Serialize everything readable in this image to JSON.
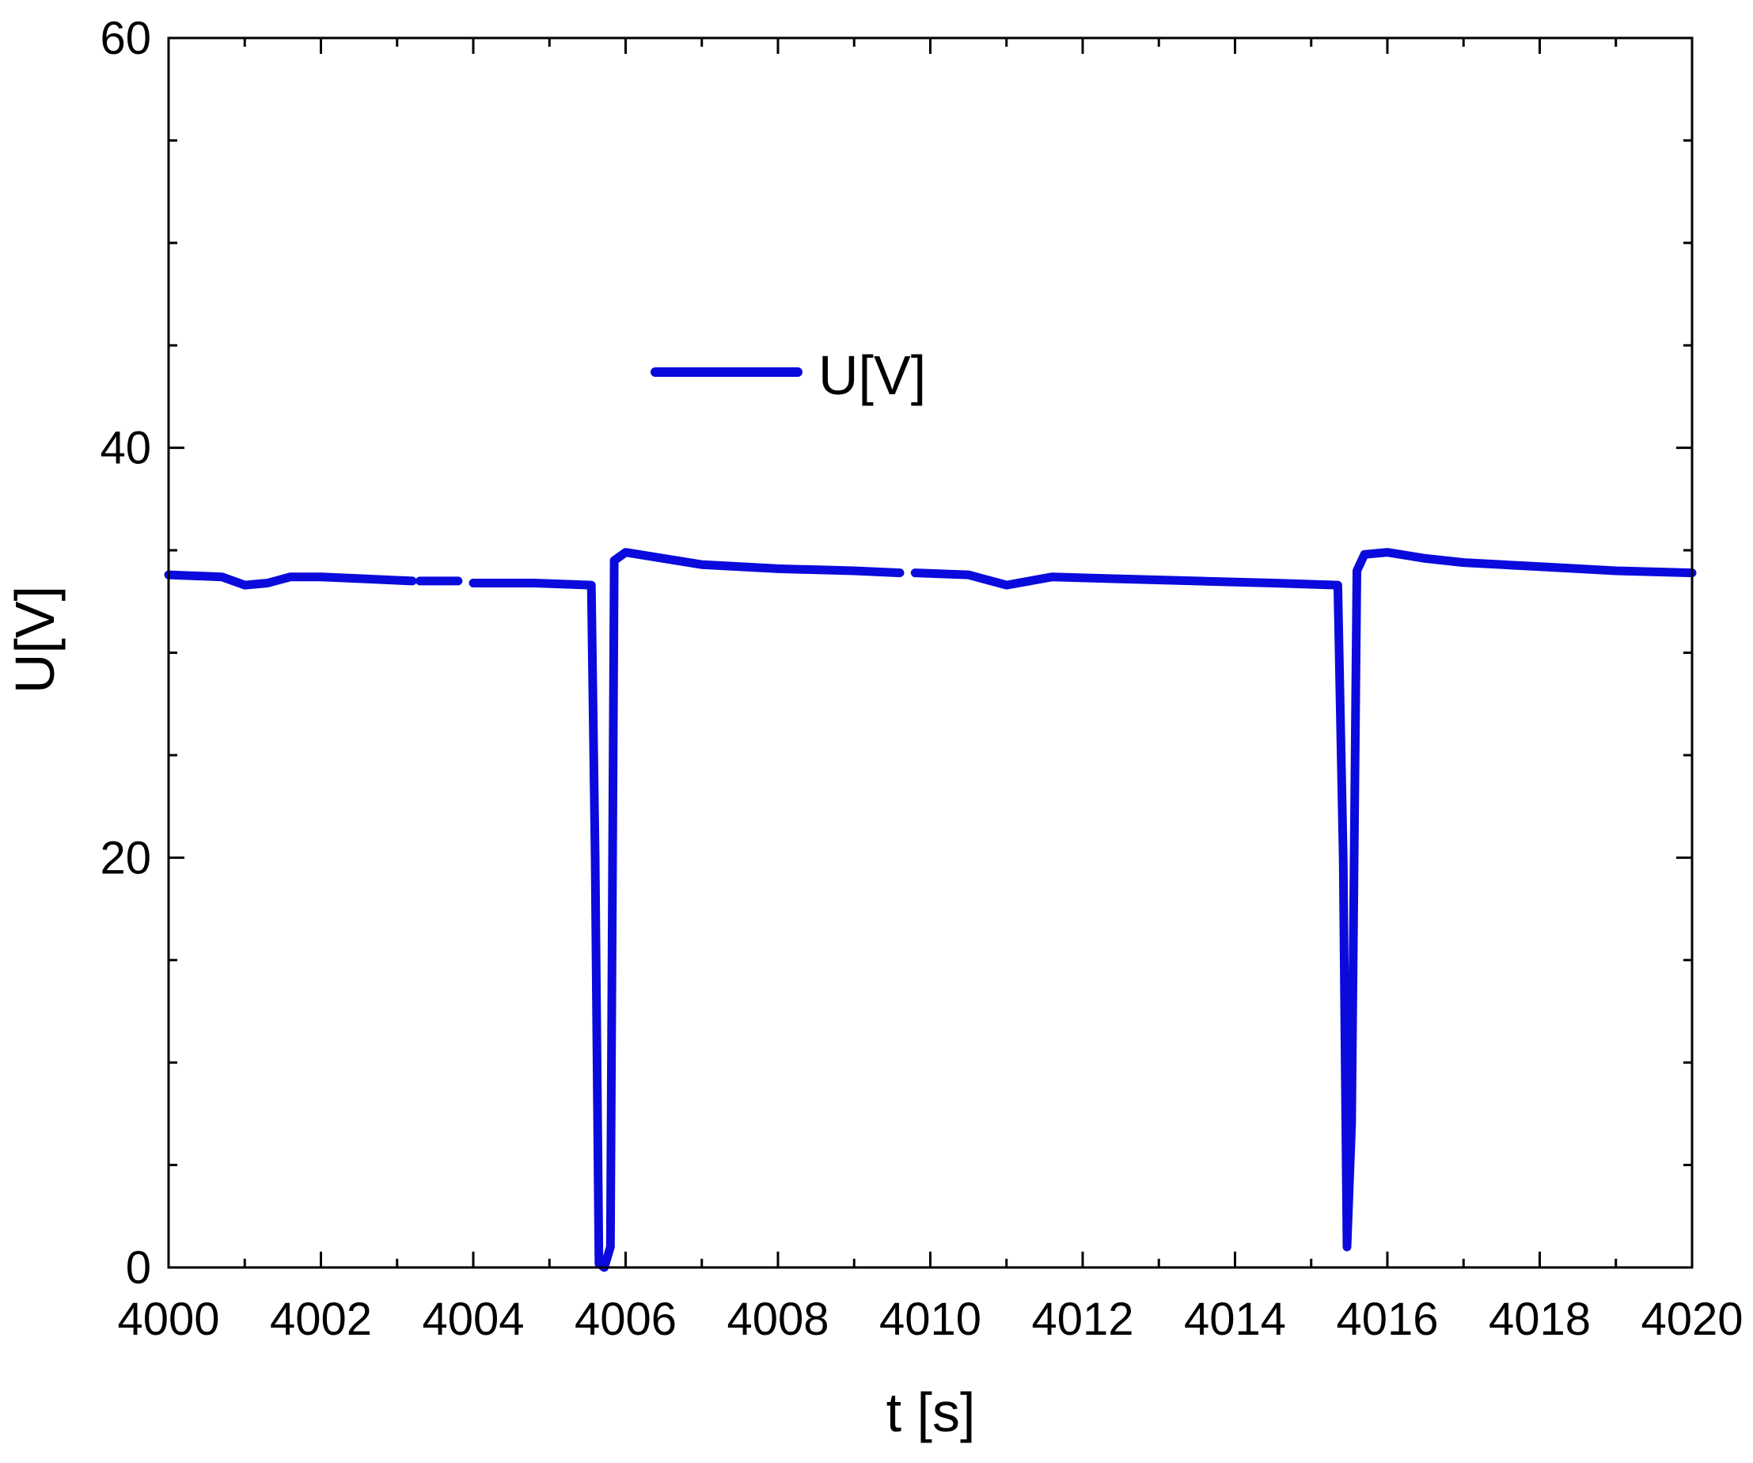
{
  "chart_data": {
    "type": "line",
    "title": "",
    "xlabel": "t [s]",
    "ylabel": "U[V]",
    "xlim": [
      4000,
      4020
    ],
    "ylim": [
      0,
      60
    ],
    "x_ticks": [
      4000,
      4002,
      4004,
      4006,
      4008,
      4010,
      4012,
      4014,
      4016,
      4018,
      4020
    ],
    "y_ticks": [
      0,
      20,
      40,
      60
    ],
    "x_tick_labels": [
      "4000",
      "4002",
      "4004",
      "4006",
      "4008",
      "4010",
      "4012",
      "4014",
      "4016",
      "4018",
      "4020"
    ],
    "y_tick_labels": [
      "0",
      "20",
      "40",
      "60"
    ],
    "grid": false,
    "legend": {
      "position": "upper-center",
      "entries": [
        {
          "label": "U[V]",
          "color": "#0a0adc"
        }
      ]
    },
    "series": [
      {
        "name": "U[V]",
        "color": "#0a0adc",
        "segments": [
          {
            "x": [
              4000.0,
              4000.7,
              4001.0,
              4001.3,
              4001.6,
              4002.0,
              4002.6,
              4003.2
            ],
            "y": [
              33.8,
              33.7,
              33.3,
              33.4,
              33.7,
              33.7,
              33.6,
              33.5
            ]
          },
          {
            "x": [
              4003.3,
              4003.8
            ],
            "y": [
              33.5,
              33.5
            ]
          },
          {
            "x": [
              4004.0,
              4004.8,
              4005.55,
              4005.6,
              4005.65,
              4005.72,
              4005.8,
              4005.85,
              4006.0,
              4006.5,
              4007.0,
              4008.0,
              4009.0,
              4009.6
            ],
            "y": [
              33.4,
              33.4,
              33.3,
              20.0,
              0.2,
              0.0,
              1.0,
              34.5,
              34.9,
              34.6,
              34.3,
              34.1,
              34.0,
              33.9
            ]
          },
          {
            "x": [
              4009.8,
              4010.5,
              4010.7,
              4011.0,
              4011.3,
              4011.6,
              4012.5,
              4013.5,
              4014.5,
              4015.35,
              4015.42,
              4015.47,
              4015.53,
              4015.6,
              4015.7,
              4016.0,
              4016.5,
              4017.0,
              4018.0,
              4019.0,
              4020.0
            ],
            "y": [
              33.9,
              33.8,
              33.6,
              33.3,
              33.5,
              33.7,
              33.6,
              33.5,
              33.4,
              33.3,
              20.0,
              1.0,
              7.0,
              34.0,
              34.8,
              34.9,
              34.6,
              34.4,
              34.2,
              34.0,
              33.9
            ]
          }
        ]
      }
    ]
  }
}
